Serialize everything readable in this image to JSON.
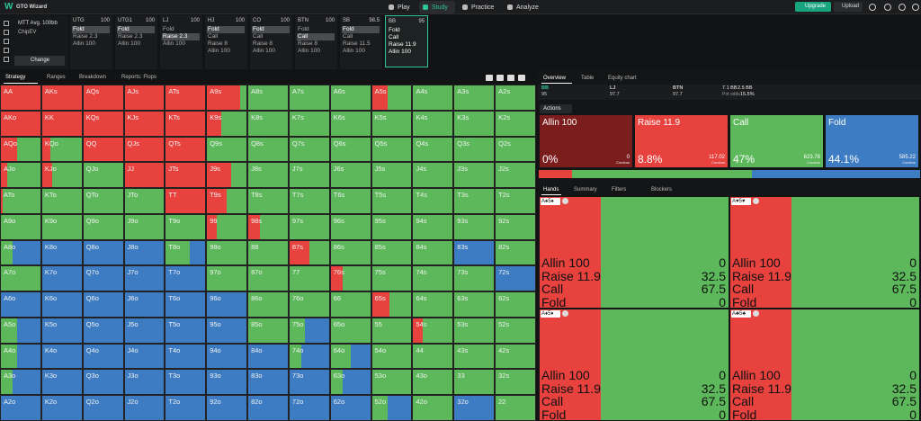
{
  "nav": {
    "logo": "W",
    "app": "GTO Wizard",
    "items": [
      "Play",
      "Study",
      "Practice",
      "Analyze"
    ],
    "active": 1,
    "upgrade": "Upgrade",
    "upload": "Upload"
  },
  "settings": {
    "format": "MTT Avg. 100bb",
    "model": "ChipEV",
    "button": "Change"
  },
  "positions": [
    {
      "name": "UTG",
      "stack": 100,
      "actions": [
        "Fold",
        "Raise 2.3",
        "Allin 100"
      ],
      "selected": 0
    },
    {
      "name": "UTG1",
      "stack": 100,
      "actions": [
        "Fold",
        "Raise 2.3",
        "Allin 100"
      ],
      "selected": 0
    },
    {
      "name": "LJ",
      "stack": 100,
      "actions": [
        "Fold",
        "Raise 2.3",
        "Allin 100"
      ],
      "selected": 1
    },
    {
      "name": "HJ",
      "stack": 100,
      "actions": [
        "Fold",
        "Call",
        "Raise 8",
        "Allin 100"
      ],
      "selected": 0
    },
    {
      "name": "CO",
      "stack": 100,
      "actions": [
        "Fold",
        "Call",
        "Raise 8",
        "Allin 100"
      ],
      "selected": 0
    },
    {
      "name": "BTN",
      "stack": 100,
      "actions": [
        "Fold",
        "Call",
        "Raise 8",
        "Allin 100"
      ],
      "selected": 1
    },
    {
      "name": "SB",
      "stack": 98.5,
      "actions": [
        "Fold",
        "Call",
        "Raise 11.5",
        "Allin 100"
      ],
      "selected": 0
    },
    {
      "name": "BB",
      "stack": 95,
      "actions": [
        "Fold",
        "Call",
        "Raise 11.9",
        "Allin 100"
      ],
      "active": true
    }
  ],
  "grid_tabs": [
    "Strategy",
    "Ranges",
    "Breakdown",
    "Reports: Flops"
  ],
  "panel_tabs": [
    "Overview",
    "Table",
    "Equity chart"
  ],
  "summary": {
    "players": [
      {
        "name": "BB",
        "stack": 95
      },
      {
        "name": "LJ",
        "stack": 97.7
      },
      {
        "name": "BTN",
        "stack": 97.7
      }
    ],
    "pot": "7.1 BB",
    "bet": "2.5 BB",
    "pot_odds_label": "Pot odds",
    "pot_odds": "15.5%"
  },
  "actions_label": "Actions",
  "combos_label": "Combos",
  "actions": [
    {
      "name": "Allin 100",
      "freq": 0,
      "freq_label": "0%",
      "combos": 0,
      "color": "#7c1d1d"
    },
    {
      "name": "Raise 11.9",
      "freq": 8.8,
      "freq_label": "8.8%",
      "combos": 117.02,
      "color": "#e8423f"
    },
    {
      "name": "Call",
      "freq": 47,
      "freq_label": "47%",
      "combos": 623.78,
      "color": "#5cb85a"
    },
    {
      "name": "Fold",
      "freq": 44.1,
      "freq_label": "44.1%",
      "combos": 585.22,
      "color": "#3d7cc2"
    }
  ],
  "hand_tabs": [
    "Hands",
    "Summary",
    "Filters",
    "Blockers"
  ],
  "combos": [
    {
      "cards": "A♠5♠",
      "rows": [
        [
          "Allin 100",
          0
        ],
        [
          "Raise 11.9",
          32.5
        ],
        [
          "Call",
          67.5
        ],
        [
          "Fold",
          0
        ]
      ]
    },
    {
      "cards": "A♥5♥",
      "rows": [
        [
          "Allin 100",
          0
        ],
        [
          "Raise 11.9",
          32.5
        ],
        [
          "Call",
          67.5
        ],
        [
          "Fold",
          0
        ]
      ]
    },
    {
      "cards": "A♦5♦",
      "rows": [
        [
          "Allin 100",
          0
        ],
        [
          "Raise 11.9",
          32.5
        ],
        [
          "Call",
          67.5
        ],
        [
          "Fold",
          0
        ]
      ]
    },
    {
      "cards": "A♣5♣",
      "rows": [
        [
          "Allin 100",
          0
        ],
        [
          "Raise 11.9",
          32.5
        ],
        [
          "Call",
          67.5
        ],
        [
          "Fold",
          0
        ]
      ]
    }
  ],
  "hand_grid": {
    "hands": [
      [
        "AA",
        "AKs",
        "AQs",
        "AJs",
        "ATs",
        "A9s",
        "A8s",
        "A7s",
        "A6s",
        "A5s",
        "A4s",
        "A3s",
        "A2s"
      ],
      [
        "AKo",
        "KK",
        "KQs",
        "KJs",
        "KTs",
        "K9s",
        "K8s",
        "K7s",
        "K6s",
        "K5s",
        "K4s",
        "K3s",
        "K2s"
      ],
      [
        "AQo",
        "KQo",
        "QQ",
        "QJs",
        "QTs",
        "Q9s",
        "Q8s",
        "Q7s",
        "Q6s",
        "Q5s",
        "Q4s",
        "Q3s",
        "Q2s"
      ],
      [
        "AJo",
        "KJo",
        "QJo",
        "JJ",
        "JTs",
        "J9s",
        "J8s",
        "J7s",
        "J6s",
        "J5s",
        "J4s",
        "J3s",
        "J2s"
      ],
      [
        "ATo",
        "KTo",
        "QTo",
        "JTo",
        "TT",
        "T9s",
        "T8s",
        "T7s",
        "T6s",
        "T5s",
        "T4s",
        "T3s",
        "T2s"
      ],
      [
        "A9o",
        "K9o",
        "Q9o",
        "J9o",
        "T9o",
        "99",
        "98s",
        "97s",
        "96s",
        "95s",
        "94s",
        "93s",
        "92s"
      ],
      [
        "A8o",
        "K8o",
        "Q8o",
        "J8o",
        "T8o",
        "98o",
        "88",
        "87s",
        "86s",
        "85s",
        "84s",
        "83s",
        "82s"
      ],
      [
        "A7o",
        "K7o",
        "Q7o",
        "J7o",
        "T7o",
        "97o",
        "87o",
        "77",
        "76s",
        "75s",
        "74s",
        "73s",
        "72s"
      ],
      [
        "A6o",
        "K6o",
        "Q6o",
        "J6o",
        "T6o",
        "96o",
        "86o",
        "76o",
        "66",
        "65s",
        "64s",
        "63s",
        "62s"
      ],
      [
        "A5o",
        "K5o",
        "Q5o",
        "J5o",
        "T5o",
        "95o",
        "85o",
        "75o",
        "65o",
        "55",
        "54s",
        "53s",
        "52s"
      ],
      [
        "A4o",
        "K4o",
        "Q4o",
        "J4o",
        "T4o",
        "94o",
        "84o",
        "74o",
        "64o",
        "54o",
        "44",
        "43s",
        "42s"
      ],
      [
        "A3o",
        "K3o",
        "Q3o",
        "J3o",
        "T3o",
        "93o",
        "83o",
        "73o",
        "63o",
        "53o",
        "43o",
        "33",
        "32s"
      ],
      [
        "A2o",
        "K2o",
        "Q2o",
        "J2o",
        "T2o",
        "92o",
        "82o",
        "72o",
        "62o",
        "52o",
        "42o",
        "32o",
        "22"
      ]
    ],
    "mix": [
      [
        [
          100,
          0,
          0
        ],
        [
          100,
          0,
          0
        ],
        [
          100,
          0,
          0
        ],
        [
          100,
          0,
          0
        ],
        [
          100,
          0,
          0
        ],
        [
          85,
          15,
          0
        ],
        [
          0,
          100,
          0
        ],
        [
          0,
          100,
          0
        ],
        [
          0,
          100,
          0
        ],
        [
          40,
          60,
          0
        ],
        [
          0,
          100,
          0
        ],
        [
          0,
          100,
          0
        ],
        [
          0,
          100,
          0
        ]
      ],
      [
        [
          100,
          0,
          0
        ],
        [
          100,
          0,
          0
        ],
        [
          100,
          0,
          0
        ],
        [
          100,
          0,
          0
        ],
        [
          100,
          0,
          0
        ],
        [
          35,
          65,
          0
        ],
        [
          0,
          100,
          0
        ],
        [
          0,
          100,
          0
        ],
        [
          0,
          100,
          0
        ],
        [
          0,
          100,
          0
        ],
        [
          0,
          100,
          0
        ],
        [
          0,
          100,
          0
        ],
        [
          0,
          100,
          0
        ]
      ],
      [
        [
          40,
          60,
          0
        ],
        [
          20,
          80,
          0
        ],
        [
          100,
          0,
          0
        ],
        [
          100,
          0,
          0
        ],
        [
          100,
          0,
          0
        ],
        [
          0,
          100,
          0
        ],
        [
          0,
          100,
          0
        ],
        [
          0,
          100,
          0
        ],
        [
          0,
          100,
          0
        ],
        [
          0,
          100,
          0
        ],
        [
          0,
          100,
          0
        ],
        [
          0,
          100,
          0
        ],
        [
          0,
          100,
          0
        ]
      ],
      [
        [
          15,
          85,
          0
        ],
        [
          25,
          75,
          0
        ],
        [
          0,
          100,
          0
        ],
        [
          100,
          0,
          0
        ],
        [
          100,
          0,
          0
        ],
        [
          60,
          40,
          0
        ],
        [
          0,
          100,
          0
        ],
        [
          0,
          100,
          0
        ],
        [
          0,
          100,
          0
        ],
        [
          0,
          100,
          0
        ],
        [
          0,
          100,
          0
        ],
        [
          0,
          100,
          0
        ],
        [
          0,
          100,
          0
        ]
      ],
      [
        [
          5,
          95,
          0
        ],
        [
          0,
          100,
          0
        ],
        [
          0,
          100,
          0
        ],
        [
          0,
          100,
          0
        ],
        [
          100,
          0,
          0
        ],
        [
          50,
          50,
          0
        ],
        [
          0,
          100,
          0
        ],
        [
          0,
          100,
          0
        ],
        [
          0,
          100,
          0
        ],
        [
          0,
          100,
          0
        ],
        [
          0,
          100,
          0
        ],
        [
          0,
          100,
          0
        ],
        [
          0,
          100,
          0
        ]
      ],
      [
        [
          0,
          100,
          0
        ],
        [
          0,
          100,
          0
        ],
        [
          0,
          100,
          0
        ],
        [
          0,
          100,
          0
        ],
        [
          0,
          100,
          0
        ],
        [
          25,
          75,
          0
        ],
        [
          30,
          70,
          0
        ],
        [
          0,
          100,
          0
        ],
        [
          0,
          100,
          0
        ],
        [
          0,
          100,
          0
        ],
        [
          0,
          100,
          0
        ],
        [
          0,
          100,
          0
        ],
        [
          0,
          100,
          0
        ]
      ],
      [
        [
          0,
          30,
          70
        ],
        [
          0,
          0,
          100
        ],
        [
          0,
          0,
          100
        ],
        [
          0,
          0,
          100
        ],
        [
          0,
          60,
          40
        ],
        [
          0,
          100,
          0
        ],
        [
          0,
          100,
          0
        ],
        [
          50,
          50,
          0
        ],
        [
          0,
          100,
          0
        ],
        [
          0,
          100,
          0
        ],
        [
          0,
          100,
          0
        ],
        [
          0,
          0,
          100
        ],
        [
          0,
          100,
          0
        ]
      ],
      [
        [
          0,
          100,
          0
        ],
        [
          0,
          0,
          100
        ],
        [
          0,
          0,
          100
        ],
        [
          0,
          0,
          100
        ],
        [
          0,
          0,
          100
        ],
        [
          0,
          100,
          0
        ],
        [
          0,
          100,
          0
        ],
        [
          0,
          100,
          0
        ],
        [
          30,
          70,
          0
        ],
        [
          0,
          100,
          0
        ],
        [
          0,
          100,
          0
        ],
        [
          0,
          100,
          0
        ],
        [
          0,
          0,
          100
        ]
      ],
      [
        [
          0,
          0,
          100
        ],
        [
          0,
          0,
          100
        ],
        [
          0,
          0,
          100
        ],
        [
          0,
          0,
          100
        ],
        [
          0,
          0,
          100
        ],
        [
          0,
          0,
          100
        ],
        [
          0,
          100,
          0
        ],
        [
          0,
          100,
          0
        ],
        [
          0,
          100,
          0
        ],
        [
          45,
          55,
          0
        ],
        [
          0,
          100,
          0
        ],
        [
          0,
          100,
          0
        ],
        [
          0,
          100,
          0
        ]
      ],
      [
        [
          0,
          40,
          60
        ],
        [
          0,
          0,
          100
        ],
        [
          0,
          0,
          100
        ],
        [
          0,
          0,
          100
        ],
        [
          0,
          0,
          100
        ],
        [
          0,
          0,
          100
        ],
        [
          0,
          100,
          0
        ],
        [
          0,
          40,
          60
        ],
        [
          0,
          100,
          0
        ],
        [
          0,
          100,
          0
        ],
        [
          25,
          75,
          0
        ],
        [
          0,
          100,
          0
        ],
        [
          0,
          100,
          0
        ]
      ],
      [
        [
          0,
          40,
          60
        ],
        [
          0,
          0,
          100
        ],
        [
          0,
          0,
          100
        ],
        [
          0,
          0,
          100
        ],
        [
          0,
          0,
          100
        ],
        [
          0,
          0,
          100
        ],
        [
          0,
          0,
          100
        ],
        [
          0,
          30,
          70
        ],
        [
          0,
          50,
          50
        ],
        [
          0,
          100,
          0
        ],
        [
          0,
          100,
          0
        ],
        [
          0,
          100,
          0
        ],
        [
          0,
          100,
          0
        ]
      ],
      [
        [
          0,
          30,
          70
        ],
        [
          0,
          0,
          100
        ],
        [
          0,
          0,
          100
        ],
        [
          0,
          0,
          100
        ],
        [
          0,
          0,
          100
        ],
        [
          0,
          0,
          100
        ],
        [
          0,
          0,
          100
        ],
        [
          0,
          0,
          100
        ],
        [
          0,
          30,
          70
        ],
        [
          0,
          100,
          0
        ],
        [
          0,
          100,
          0
        ],
        [
          0,
          100,
          0
        ],
        [
          0,
          100,
          0
        ]
      ],
      [
        [
          0,
          0,
          100
        ],
        [
          0,
          0,
          100
        ],
        [
          0,
          0,
          100
        ],
        [
          0,
          0,
          100
        ],
        [
          0,
          0,
          100
        ],
        [
          0,
          0,
          100
        ],
        [
          0,
          0,
          100
        ],
        [
          0,
          0,
          100
        ],
        [
          0,
          0,
          100
        ],
        [
          0,
          40,
          60
        ],
        [
          0,
          100,
          0
        ],
        [
          0,
          0,
          100
        ],
        [
          0,
          100,
          0
        ]
      ]
    ]
  }
}
